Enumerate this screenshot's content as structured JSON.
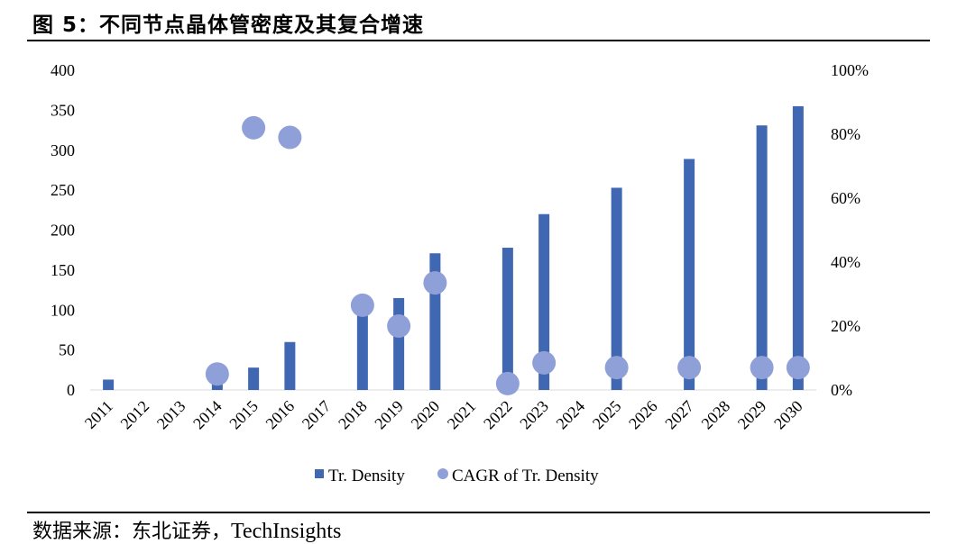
{
  "figure": {
    "title": "图 5：不同节点晶体管密度及其复合增速",
    "source_label": "数据来源：东北证券，",
    "source_name": "TechInsights"
  },
  "chart_data": {
    "type": "bar",
    "categories": [
      "2011",
      "2012",
      "2013",
      "2014",
      "2015",
      "2016",
      "2017",
      "2018",
      "2019",
      "2020",
      "2021",
      "2022",
      "2023",
      "2024",
      "2025",
      "2026",
      "2027",
      "2028",
      "2029",
      "2030"
    ],
    "series": [
      {
        "name": "Tr. Density",
        "kind": "bar",
        "axis": "left",
        "color": "#4068b2",
        "values": [
          13,
          null,
          null,
          10,
          28,
          60,
          null,
          100,
          115,
          171,
          null,
          178,
          220,
          null,
          253,
          null,
          289,
          null,
          331,
          355
        ]
      },
      {
        "name": "CAGR of Tr. Density",
        "kind": "scatter",
        "axis": "right",
        "color": "#8fa0d8",
        "values": [
          null,
          null,
          null,
          0.05,
          0.82,
          0.79,
          null,
          0.265,
          0.2,
          0.335,
          null,
          0.02,
          0.085,
          null,
          0.07,
          null,
          0.07,
          null,
          0.07,
          0.07
        ]
      }
    ],
    "y_left": {
      "min": 0,
      "max": 400,
      "ticks": [
        "0",
        "50",
        "100",
        "150",
        "200",
        "250",
        "300",
        "350",
        "400"
      ]
    },
    "y_right": {
      "min": 0,
      "max": 1,
      "ticks": [
        "0%",
        "20%",
        "40%",
        "60%",
        "80%",
        "100%"
      ]
    },
    "legend": {
      "position": "bottom-center",
      "items": [
        "Tr. Density",
        "CAGR of Tr. Density"
      ]
    },
    "grid": false
  }
}
